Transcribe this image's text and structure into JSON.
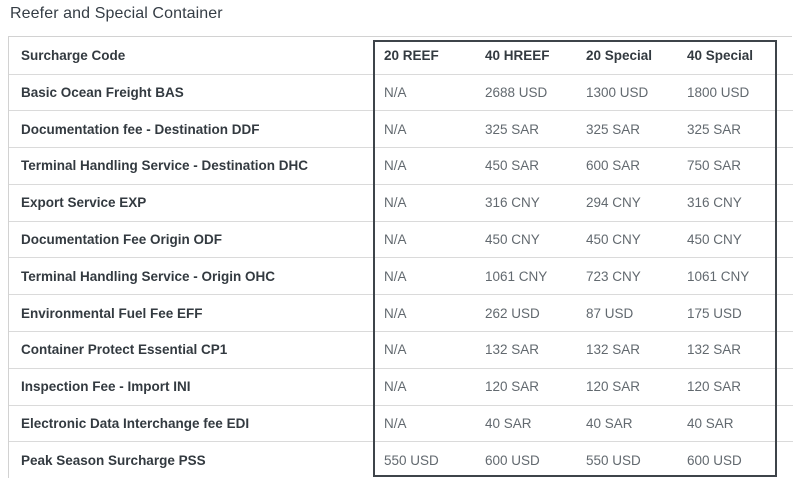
{
  "title": "Reefer and Special Container",
  "table": {
    "columns": [
      "Surcharge Code",
      "20 REEF",
      "40 HREEF",
      "20 Special",
      "40 Special"
    ],
    "rows": [
      {
        "label": "Basic Ocean Freight BAS",
        "values": [
          "N/A",
          "2688 USD",
          "1300 USD",
          "1800 USD"
        ]
      },
      {
        "label": "Documentation fee - Destination DDF",
        "values": [
          "N/A",
          "325 SAR",
          "325 SAR",
          "325 SAR"
        ]
      },
      {
        "label": "Terminal Handling Service - Destination DHC",
        "values": [
          "N/A",
          "450 SAR",
          "600 SAR",
          "750 SAR"
        ]
      },
      {
        "label": "Export Service EXP",
        "values": [
          "N/A",
          "316 CNY",
          "294 CNY",
          "316 CNY"
        ]
      },
      {
        "label": "Documentation Fee Origin ODF",
        "values": [
          "N/A",
          "450 CNY",
          "450 CNY",
          "450 CNY"
        ]
      },
      {
        "label": "Terminal Handling Service - Origin OHC",
        "values": [
          "N/A",
          "1061 CNY",
          "723 CNY",
          "1061 CNY"
        ]
      },
      {
        "label": "Environmental Fuel Fee EFF",
        "values": [
          "N/A",
          "262 USD",
          "87 USD",
          "175 USD"
        ]
      },
      {
        "label": "Container Protect Essential CP1",
        "values": [
          "N/A",
          "132 SAR",
          "132 SAR",
          "132 SAR"
        ]
      },
      {
        "label": "Inspection Fee - Import INI",
        "values": [
          "N/A",
          "120 SAR",
          "120 SAR",
          "120 SAR"
        ]
      },
      {
        "label": "Electronic Data Interchange fee EDI",
        "values": [
          "N/A",
          "40 SAR",
          "40 SAR",
          "40 SAR"
        ]
      },
      {
        "label": "Peak Season Surcharge PSS",
        "values": [
          "550 USD",
          "600 USD",
          "550 USD",
          "600 USD"
        ]
      }
    ]
  },
  "colors": {
    "highlight_box_border": "#3e444a",
    "table_border": "#d2d2d2",
    "row_separator": "#dadada",
    "label_text": "#333a40",
    "value_text": "#62696f",
    "title_text": "#353d45"
  }
}
